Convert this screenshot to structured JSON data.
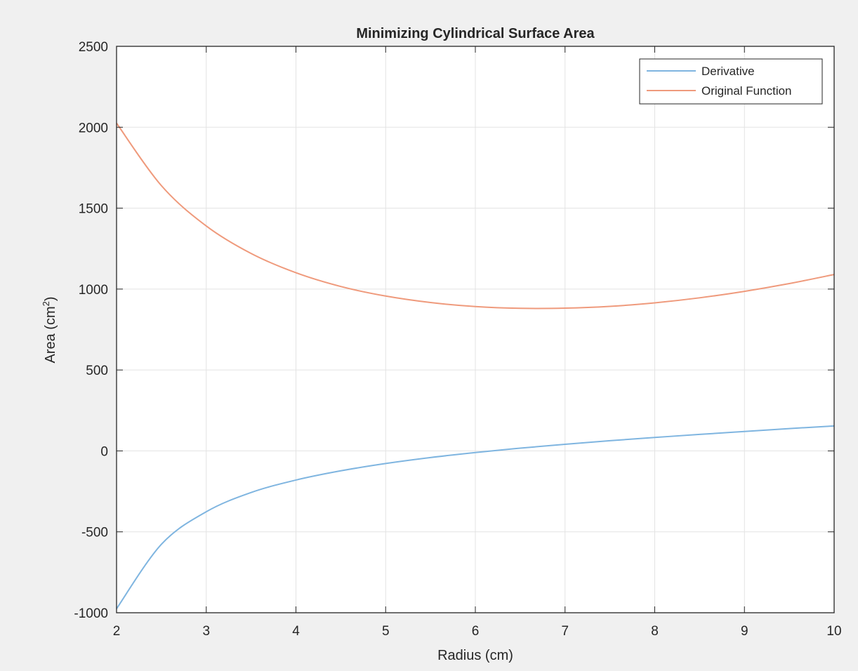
{
  "chart_data": {
    "type": "line",
    "title": "Minimizing Cylindrical Surface Area",
    "xlabel": "Radius (cm)",
    "ylabel_main": "Area (cm",
    "ylabel_sup": "2",
    "ylabel_close": ")",
    "xlim": [
      2,
      10
    ],
    "ylim": [
      -1000,
      2500
    ],
    "xticks": [
      2,
      3,
      4,
      5,
      6,
      7,
      8,
      9,
      10
    ],
    "yticks": [
      -1000,
      -500,
      0,
      500,
      1000,
      1500,
      2000,
      2500
    ],
    "grid": true,
    "legend_position": "top-right",
    "series": [
      {
        "name": "Derivative",
        "color": "#7fb5e0",
        "x": [
          2,
          2.5,
          3,
          3.5,
          4,
          4.5,
          5,
          5.5,
          6,
          6.5,
          7,
          7.5,
          8,
          8.5,
          9,
          9.5,
          10
        ],
        "y": [
          -975,
          -577,
          -376,
          -257,
          -180,
          -123,
          -78,
          -41,
          -10,
          17,
          41,
          63,
          83,
          102,
          120,
          138,
          154
        ]
      },
      {
        "name": "Original Function",
        "color": "#ef9a7c",
        "x": [
          2,
          2.5,
          3,
          3.5,
          4,
          4.5,
          5,
          5.5,
          6,
          6.5,
          7,
          7.5,
          8,
          8.5,
          9,
          9.5,
          10
        ],
        "y": [
          2025,
          1639,
          1390,
          1220,
          1101,
          1016,
          957,
          917,
          892,
          881,
          882,
          893,
          915,
          946,
          986,
          1034,
          1090
        ]
      }
    ]
  }
}
